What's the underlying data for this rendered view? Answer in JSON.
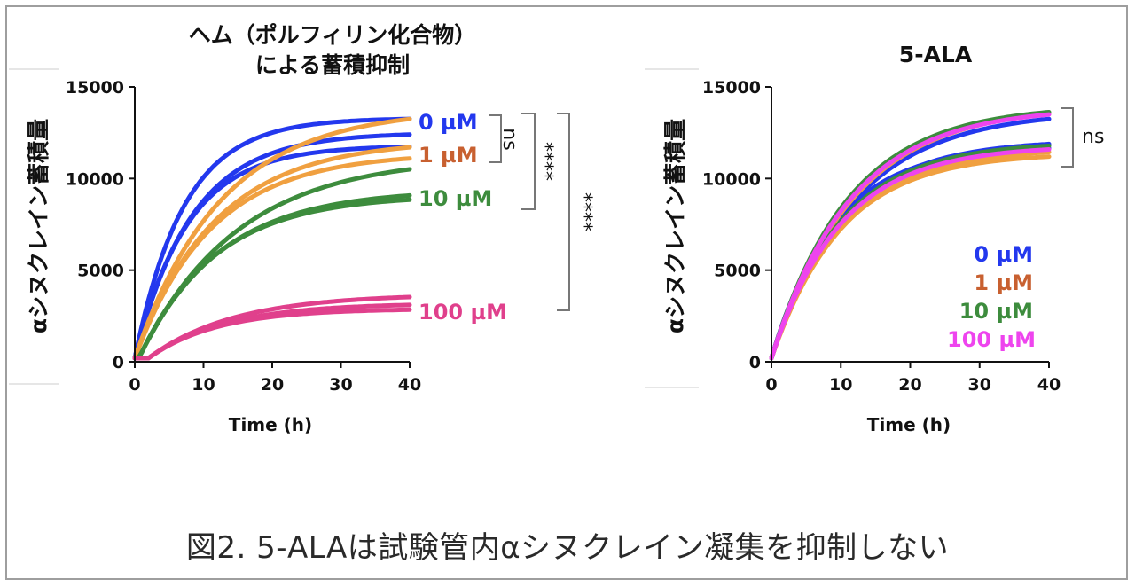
{
  "colors": {
    "c0": "#2338ee",
    "c1": "#f0a040",
    "c10": "#3d8c3d",
    "c100": "#e0408c",
    "l1": "#c86030",
    "l100_right": "#ee44ee",
    "axis": "#111111",
    "bracket": "#777777"
  },
  "chart_data": [
    {
      "type": "line",
      "title_line1": "ヘム（ポルフィリン化合物）",
      "title_line2": "による蓄積抑制",
      "xlabel": "Time (h)",
      "ylabel": "αシヌクレイン蓄積量",
      "xlim": [
        0,
        40
      ],
      "ylim": [
        0,
        15000
      ],
      "xticks": [
        "0",
        "10",
        "20",
        "30",
        "40"
      ],
      "yticks": [
        "0",
        "5000",
        "10000",
        "15000"
      ],
      "series": [
        {
          "name": "0 µM",
          "color": "#2338ee",
          "curves": [
            {
              "A": 13100,
              "k": 0.14
            },
            {
              "A": 12300,
              "k": 0.12
            },
            {
              "A": 11600,
              "k": 0.13
            }
          ]
        },
        {
          "name": "1 µM",
          "color": "#f0a040",
          "label_color": "#c86030",
          "curves": [
            {
              "A": 13600,
              "k": 0.08
            },
            {
              "A": 11900,
              "k": 0.085
            },
            {
              "A": 11200,
              "k": 0.09
            }
          ]
        },
        {
          "name": "10 µM",
          "color": "#3d8c3d",
          "curves": [
            {
              "A": 11000,
              "k": 0.07
            },
            {
              "A": 9200,
              "k": 0.085
            },
            {
              "A": 8900,
              "k": 0.09
            }
          ]
        },
        {
          "name": "100 µM",
          "color": "#e0408c",
          "curves": [
            {
              "A": 3500,
              "k": 0.08
            },
            {
              "A": 3000,
              "k": 0.09
            },
            {
              "A": 2700,
              "k": 0.1
            }
          ]
        }
      ],
      "significance": [
        "ns",
        "****",
        "****"
      ]
    },
    {
      "type": "line",
      "title": "5-ALA",
      "xlabel": "Time (h)",
      "ylabel": "αシヌクレイン蓄積量",
      "xlim": [
        0,
        40
      ],
      "ylim": [
        0,
        15000
      ],
      "xticks": [
        "0",
        "10",
        "20",
        "30",
        "40"
      ],
      "yticks": [
        "0",
        "5000",
        "10000",
        "15000"
      ],
      "legend": [
        "0 µM",
        "1 µM",
        "10 µM",
        "100 µM"
      ],
      "legend_colors": [
        "#2338ee",
        "#c86030",
        "#3d8c3d",
        "#ee44ee"
      ],
      "series": [
        {
          "name": "0 µM",
          "color": "#2338ee",
          "curves": [
            {
              "A": 13500,
              "k": 0.085
            },
            {
              "A": 11900,
              "k": 0.1
            },
            {
              "A": 11600,
              "k": 0.11
            }
          ]
        },
        {
          "name": "1 µM",
          "color": "#f0a040",
          "curves": [
            {
              "A": 13800,
              "k": 0.085
            },
            {
              "A": 11500,
              "k": 0.095
            },
            {
              "A": 11200,
              "k": 0.1
            }
          ]
        },
        {
          "name": "10 µM",
          "color": "#3d8c3d",
          "curves": [
            {
              "A": 13800,
              "k": 0.09
            },
            {
              "A": 11800,
              "k": 0.1
            }
          ]
        },
        {
          "name": "100 µM",
          "color": "#ee44ee",
          "curves": [
            {
              "A": 13700,
              "k": 0.088
            },
            {
              "A": 11600,
              "k": 0.1
            }
          ]
        }
      ],
      "significance": [
        "ns"
      ]
    }
  ],
  "caption": "図2. 5-ALAは試験管内αシヌクレイン凝集を抑制しない"
}
